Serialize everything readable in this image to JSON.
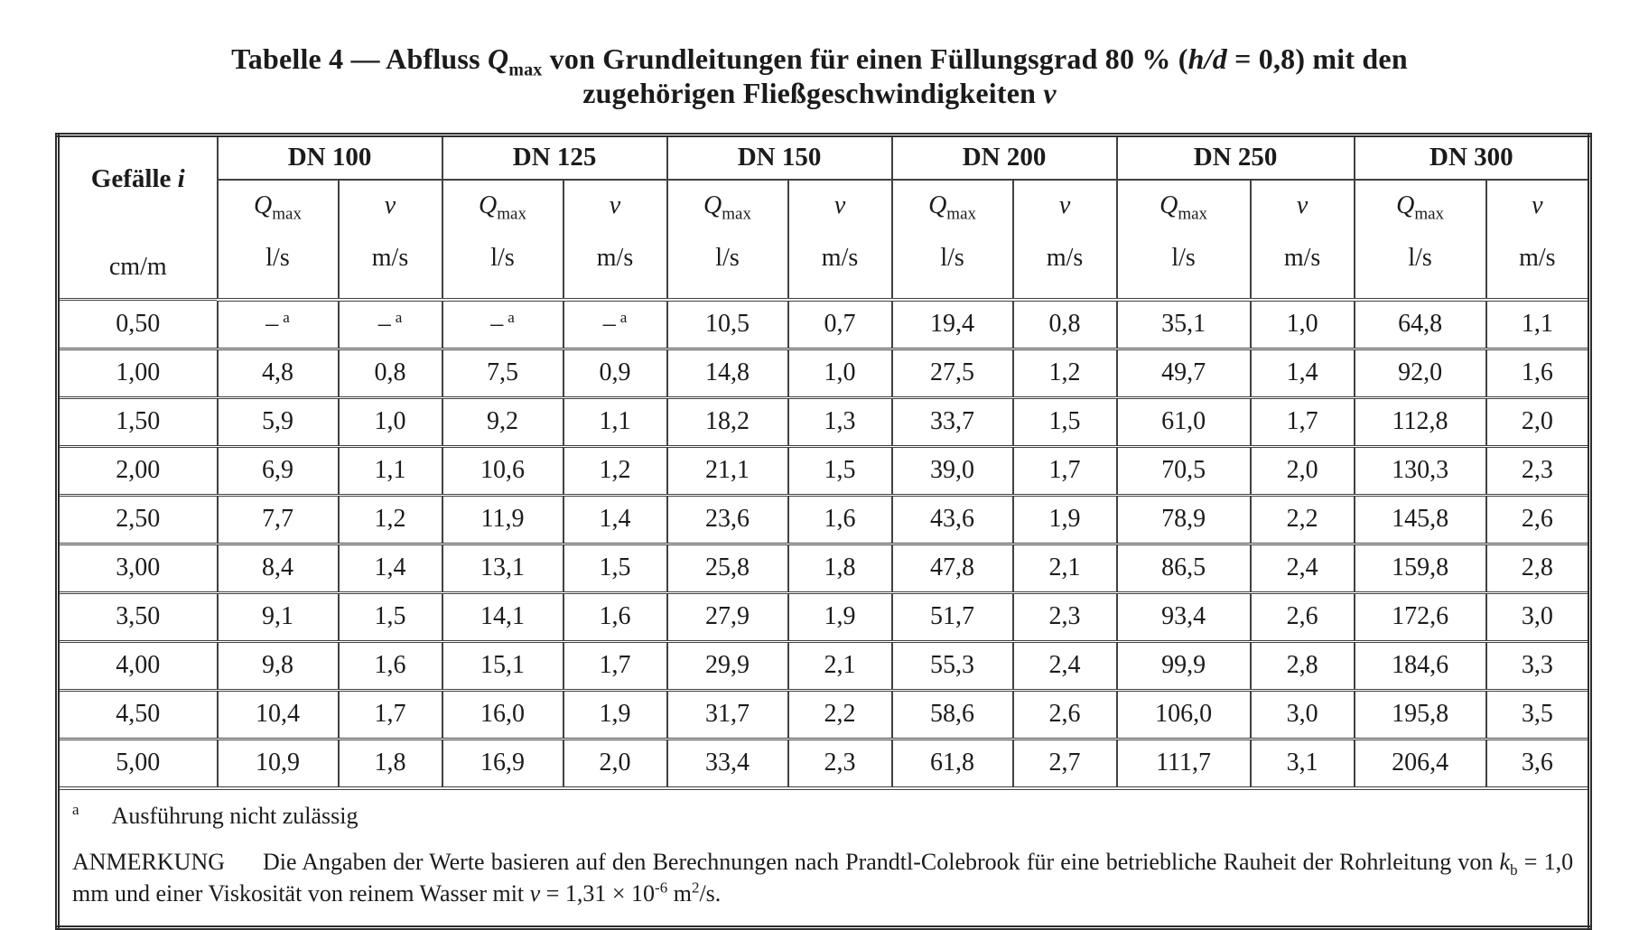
{
  "title": {
    "line1_prefix": "Tabelle 4 — Abfluss ",
    "q_base": "Q",
    "q_sub": "max",
    "line1_mid": " von Grundleitungen für einen Füllungsgrad 80 % (",
    "hd_italic": "h/d",
    "line1_end": " = 0,8) mit den",
    "line2_prefix": "zugehörigen Fließgeschwindigkeiten ",
    "v_italic": "v"
  },
  "table": {
    "corner": {
      "label_bold": "Gefälle ",
      "label_italic": "i",
      "unit": "cm/m"
    },
    "dn_groups": [
      "DN 100",
      "DN 125",
      "DN 150",
      "DN 200",
      "DN 250",
      "DN 300"
    ],
    "col_headers": {
      "q_base": "Q",
      "q_sub": "max",
      "q_unit": "l/s",
      "v_symbol": "v",
      "v_unit": "m/s"
    },
    "rows": [
      {
        "i": "0,50",
        "cells": [
          "–|a",
          "–|a",
          "–|a",
          "–|a",
          "10,5",
          "0,7",
          "19,4",
          "0,8",
          "35,1",
          "1,0",
          "64,8",
          "1,1"
        ]
      },
      {
        "i": "1,00",
        "cells": [
          "4,8",
          "0,8",
          "7,5",
          "0,9",
          "14,8",
          "1,0",
          "27,5",
          "1,2",
          "49,7",
          "1,4",
          "92,0",
          "1,6"
        ]
      },
      {
        "i": "1,50",
        "cells": [
          "5,9",
          "1,0",
          "9,2",
          "1,1",
          "18,2",
          "1,3",
          "33,7",
          "1,5",
          "61,0",
          "1,7",
          "112,8",
          "2,0"
        ]
      },
      {
        "i": "2,00",
        "cells": [
          "6,9",
          "1,1",
          "10,6",
          "1,2",
          "21,1",
          "1,5",
          "39,0",
          "1,7",
          "70,5",
          "2,0",
          "130,3",
          "2,3"
        ]
      },
      {
        "i": "2,50",
        "cells": [
          "7,7",
          "1,2",
          "11,9",
          "1,4",
          "23,6",
          "1,6",
          "43,6",
          "1,9",
          "78,9",
          "2,2",
          "145,8",
          "2,6"
        ]
      },
      {
        "i": "3,00",
        "cells": [
          "8,4",
          "1,4",
          "13,1",
          "1,5",
          "25,8",
          "1,8",
          "47,8",
          "2,1",
          "86,5",
          "2,4",
          "159,8",
          "2,8"
        ]
      },
      {
        "i": "3,50",
        "cells": [
          "9,1",
          "1,5",
          "14,1",
          "1,6",
          "27,9",
          "1,9",
          "51,7",
          "2,3",
          "93,4",
          "2,6",
          "172,6",
          "3,0"
        ]
      },
      {
        "i": "4,00",
        "cells": [
          "9,8",
          "1,6",
          "15,1",
          "1,7",
          "29,9",
          "2,1",
          "55,3",
          "2,4",
          "99,9",
          "2,8",
          "184,6",
          "3,3"
        ]
      },
      {
        "i": "4,50",
        "cells": [
          "10,4",
          "1,7",
          "16,0",
          "1,9",
          "31,7",
          "2,2",
          "58,6",
          "2,6",
          "106,0",
          "3,0",
          "195,8",
          "3,5"
        ]
      },
      {
        "i": "5,00",
        "cells": [
          "10,9",
          "1,8",
          "16,9",
          "2,0",
          "33,4",
          "2,3",
          "61,8",
          "2,7",
          "111,7",
          "3,1",
          "206,4",
          "3,6"
        ]
      }
    ],
    "footnote": {
      "marker": "a",
      "text": "Ausführung nicht zulässig"
    },
    "note": {
      "label": "ANMERKUNG",
      "part1": "Die Angaben der Werte basieren auf den Berechnungen nach Prandtl-Colebrook für eine betriebliche Rauheit der Rohrleitung von ",
      "k_base": "k",
      "k_sub": "b",
      "part2": " = 1,0 mm und einer Viskosität von reinem Wasser mit ",
      "v_italic": "v",
      "part3": " = 1,31 × 10",
      "exp": "-6",
      "part4": " m",
      "sup2": "2",
      "part5": "/s."
    }
  }
}
